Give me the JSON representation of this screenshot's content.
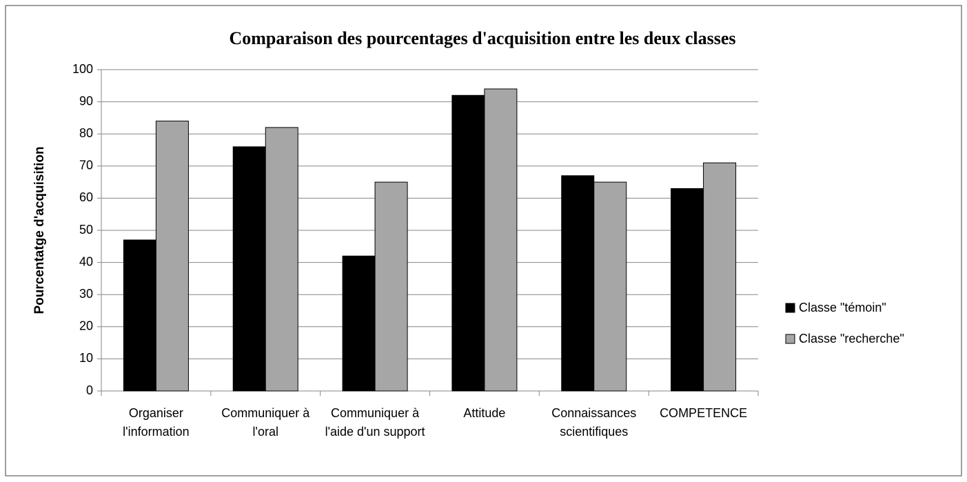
{
  "chart_data": {
    "type": "bar",
    "title": "Comparaison des pourcentages d'acquisition entre les deux classes",
    "y_label": "Pourcentatge d'acquisition",
    "categories": [
      "Organiser l'information",
      "Communiquer à l'oral",
      "Communiquer à l'aide d'un support",
      "Attitude",
      "Connaissances scientifiques",
      "COMPETENCE"
    ],
    "series": [
      {
        "name": "Classe \"témoin\"",
        "color": "#000000",
        "values": [
          47,
          76,
          42,
          92,
          67,
          63
        ]
      },
      {
        "name": "Classe \"recherche\"",
        "color": "#a6a6a6",
        "values": [
          84,
          82,
          65,
          94,
          65,
          71
        ]
      }
    ],
    "ylim": [
      0,
      100
    ],
    "yticks": [
      0,
      10,
      20,
      30,
      40,
      50,
      60,
      70,
      80,
      90,
      100
    ],
    "grid": true,
    "legend": "right"
  }
}
